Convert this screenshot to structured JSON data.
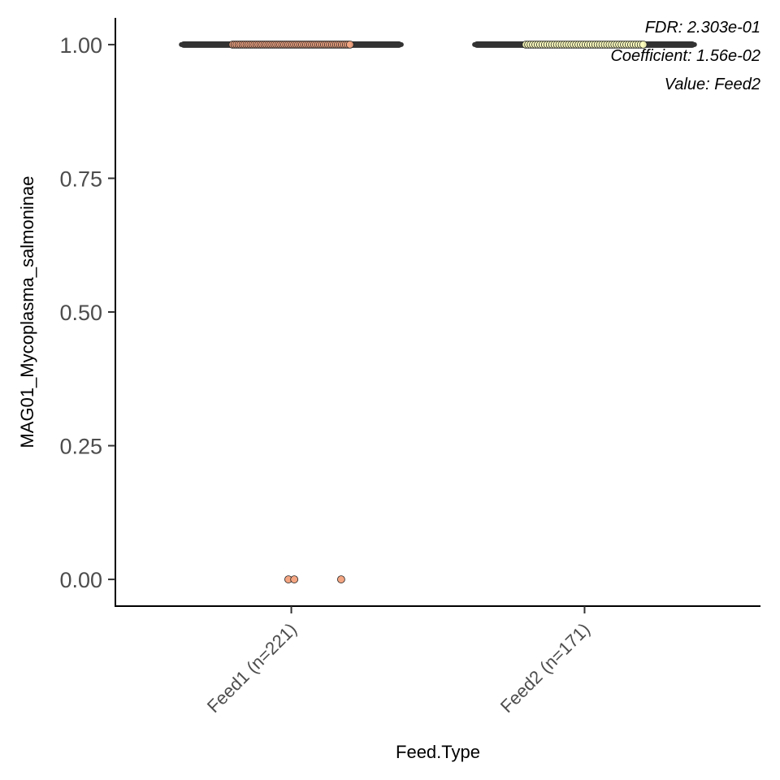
{
  "chart_data": {
    "type": "scatter",
    "xlabel": "Feed.Type",
    "ylabel": "MAG01_Mycoplasma_salmoninae",
    "categories": [
      "Feed1 (n=221)",
      "Feed2 (n=171)"
    ],
    "ylim": [
      -0.05,
      1.05
    ],
    "yticks": [
      0.0,
      0.25,
      0.5,
      0.75,
      1.0
    ],
    "ytick_labels": [
      "0.00",
      "0.25",
      "0.50",
      "0.75",
      "1.00"
    ],
    "grid": false,
    "annotations": [
      "FDR: 2.303e-01",
      "Coefficient: 1.56e-02",
      "Value: Feed2"
    ],
    "series": [
      {
        "category": "Feed1 (n=221)",
        "color": "#f4a582",
        "median": 1.0,
        "q1": 1.0,
        "q3": 1.0,
        "box_halfwidth": 0.375,
        "points_at_one": 60,
        "jitter_at_one": [
          -0.2,
          0.2
        ],
        "points": [
          {
            "jitter": -0.01,
            "y": 0.0
          },
          {
            "jitter": 0.01,
            "y": 0.0
          },
          {
            "jitter": 0.17,
            "y": 0.0
          }
        ]
      },
      {
        "category": "Feed2 (n=171)",
        "color": "#ffffbf",
        "median": 1.0,
        "q1": 1.0,
        "q3": 1.0,
        "box_halfwidth": 0.375,
        "points_at_one": 50,
        "jitter_at_one": [
          -0.2,
          0.2
        ],
        "points": []
      }
    ]
  }
}
